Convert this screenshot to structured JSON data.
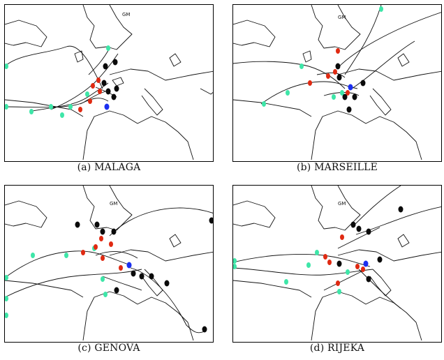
{
  "gm_label": "GM",
  "colors": {
    "start": "#3ee6a8",
    "intermediate": "#e02a12",
    "end": "#0a0a0a",
    "port": "#1b2ff0"
  },
  "panels": [
    {
      "id": "a",
      "caption": "(a) MALAGA"
    },
    {
      "id": "b",
      "caption": "(b) MARSEILLE"
    },
    {
      "id": "c",
      "caption": "(c) GENOVA"
    },
    {
      "id": "d",
      "caption": "(d) RIJEKA"
    }
  ]
}
